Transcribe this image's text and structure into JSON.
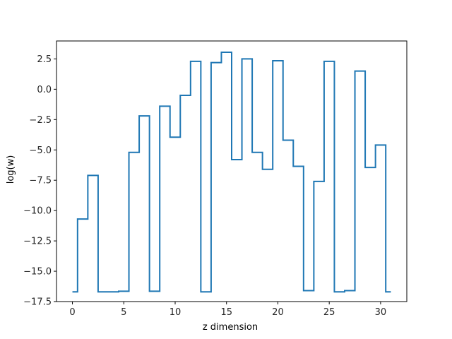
{
  "chart_data": {
    "type": "line",
    "drawstyle": "steps-mid",
    "title": "",
    "xlabel": "z dimension",
    "ylabel": "log(w)",
    "xlim": [
      -1.55,
      32.55
    ],
    "ylim": [
      -17.5,
      3.98
    ],
    "grid": false,
    "line_color": "#1f77b4",
    "x_ticks": [
      0,
      5,
      10,
      15,
      20,
      25,
      30
    ],
    "x_tick_labels": [
      "0",
      "5",
      "10",
      "15",
      "20",
      "25",
      "30"
    ],
    "y_ticks": [
      -17.5,
      -15.0,
      -12.5,
      -10.0,
      -7.5,
      -5.0,
      -2.5,
      0.0,
      2.5
    ],
    "y_tick_labels": [
      "−17.5",
      "−15.0",
      "−12.5",
      "−10.0",
      "−7.5",
      "−5.0",
      "−2.5",
      "0.0",
      "2.5"
    ],
    "series": [
      {
        "x": [
          0,
          1,
          2,
          3,
          4,
          5,
          6,
          7,
          8,
          9,
          10,
          11,
          12,
          13,
          14,
          15,
          16,
          17,
          18,
          19,
          20,
          21,
          22,
          23,
          24,
          25,
          26,
          27,
          28,
          29,
          30,
          31
        ],
        "values": [
          -16.7,
          -10.7,
          -7.1,
          -16.7,
          -16.7,
          -16.65,
          -5.2,
          -2.2,
          -16.65,
          -1.4,
          -3.95,
          -0.5,
          2.3,
          -16.7,
          2.2,
          3.05,
          -5.8,
          2.5,
          -5.2,
          -6.6,
          2.35,
          -4.2,
          -6.35,
          -16.6,
          -7.6,
          2.3,
          -16.7,
          -16.6,
          1.5,
          -6.45,
          -4.6,
          -16.7
        ]
      }
    ]
  }
}
